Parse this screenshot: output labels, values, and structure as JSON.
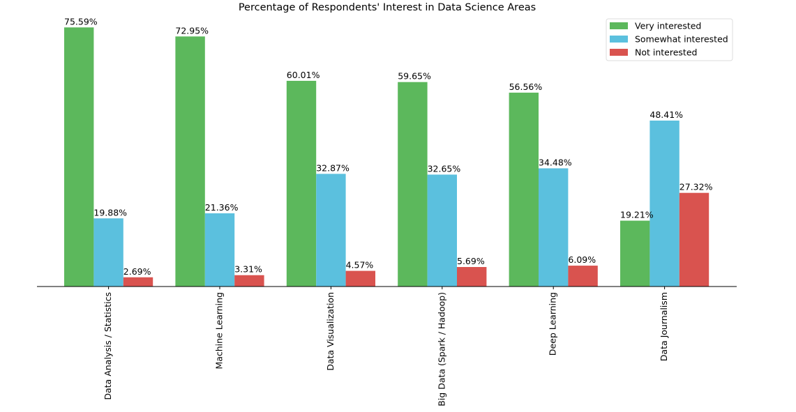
{
  "chart_data": {
    "type": "bar",
    "title": "Percentage of Respondents' Interest in Data Science Areas",
    "xlabel": "",
    "ylabel": "",
    "ylim": [
      0,
      80
    ],
    "grid": false,
    "legend_position": "top-right",
    "categories": [
      "Data Analysis / Statistics",
      "Machine Learning",
      "Data Visualization",
      "Big Data (Spark / Hadoop)",
      "Deep Learning",
      "Data Journalism"
    ],
    "series": [
      {
        "name": "Very interested",
        "color": "#5cb85c",
        "values": [
          75.59,
          72.95,
          60.01,
          59.65,
          56.56,
          19.21
        ],
        "labels": [
          "75.59%",
          "72.95%",
          "60.01%",
          "59.65%",
          "56.56%",
          "19.21%"
        ]
      },
      {
        "name": "Somewhat interested",
        "color": "#5bc0de",
        "values": [
          19.88,
          21.36,
          32.87,
          32.65,
          34.48,
          48.41
        ],
        "labels": [
          "19.88%",
          "21.36%",
          "32.87%",
          "32.65%",
          "34.48%",
          "48.41%"
        ]
      },
      {
        "name": "Not interested",
        "color": "#d9534f",
        "values": [
          2.69,
          3.31,
          4.57,
          5.69,
          6.09,
          27.32
        ],
        "labels": [
          "2.69%",
          "3.31%",
          "4.57%",
          "5.69%",
          "6.09%",
          "27.32%"
        ]
      }
    ]
  }
}
